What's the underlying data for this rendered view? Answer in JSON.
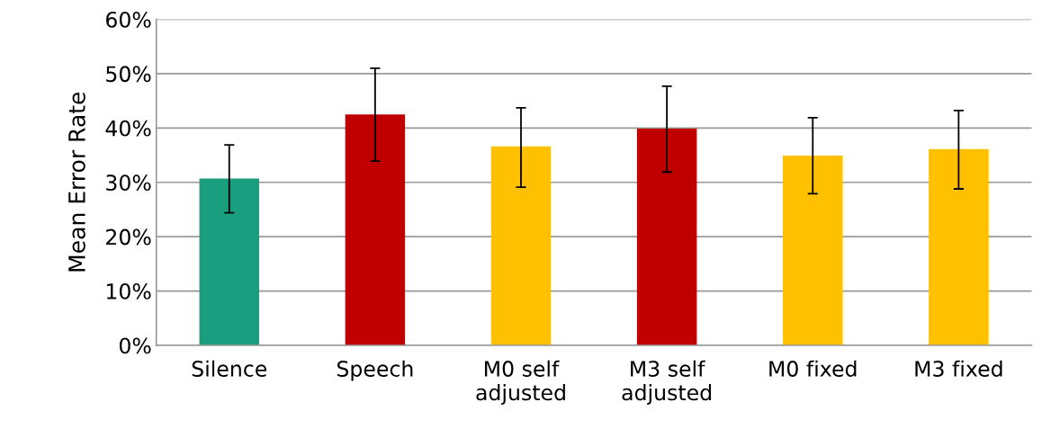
{
  "chart_data": {
    "type": "bar",
    "ylabel": "Mean Error Rate",
    "categories": [
      "Silence",
      "Speech",
      "M0 self\nadjusted",
      "M3 self\nadjusted",
      "M0 fixed",
      "M3 fixed"
    ],
    "values": [
      30.7,
      42.5,
      36.6,
      39.9,
      34.9,
      36.1
    ],
    "colors": [
      "#1a9e80",
      "#c00000",
      "#ffc000",
      "#c00000",
      "#ffc000",
      "#ffc000"
    ],
    "errors": [
      [
        24.4,
        36.9
      ],
      [
        33.9,
        51.0
      ],
      [
        29.1,
        43.7
      ],
      [
        31.9,
        47.7
      ],
      [
        27.9,
        41.9
      ],
      [
        28.8,
        43.2
      ]
    ],
    "ylim": [
      0,
      60
    ],
    "yticks": [
      {
        "value": 0,
        "label": "0%"
      },
      {
        "value": 10,
        "label": "10%"
      },
      {
        "value": 20,
        "label": "20%"
      },
      {
        "value": 30,
        "label": "30%"
      },
      {
        "value": 40,
        "label": "40%"
      },
      {
        "value": 50,
        "label": "50%"
      },
      {
        "value": 60,
        "label": "60%"
      }
    ],
    "grid": "y"
  }
}
